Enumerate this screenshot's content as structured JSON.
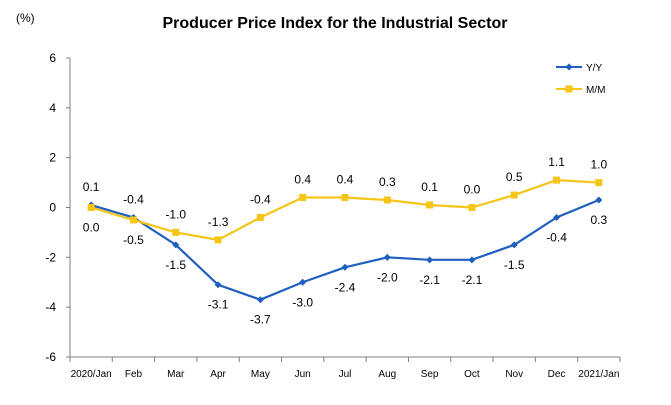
{
  "chart_data": {
    "type": "line",
    "title": "Producer Price Index for the Industrial Sector",
    "unit_label": "(%)",
    "categories": [
      "2020/Jan",
      "Feb",
      "Mar",
      "Apr",
      "May",
      "Jun",
      "Jul",
      "Aug",
      "Sep",
      "Oct",
      "Nov",
      "Dec",
      "2021/Jan"
    ],
    "ylim": [
      -6,
      6
    ],
    "yticks": [
      6,
      4,
      2,
      0,
      -2,
      -4,
      -6
    ],
    "grid": false,
    "legend_position": "top-right",
    "series": [
      {
        "name": "Y/Y",
        "color": "#1F5FBF",
        "marker": "diamond",
        "values": [
          0.1,
          -0.4,
          -1.5,
          -3.1,
          -3.7,
          -3.0,
          -2.4,
          -2.0,
          -2.1,
          -2.1,
          -1.5,
          -0.4,
          0.3
        ]
      },
      {
        "name": "M/M",
        "color": "#F5C518",
        "marker": "square",
        "values": [
          0.0,
          -0.5,
          -1.0,
          -1.3,
          -0.4,
          0.4,
          0.4,
          0.3,
          0.1,
          0.0,
          0.5,
          1.1,
          1.0
        ]
      }
    ]
  }
}
